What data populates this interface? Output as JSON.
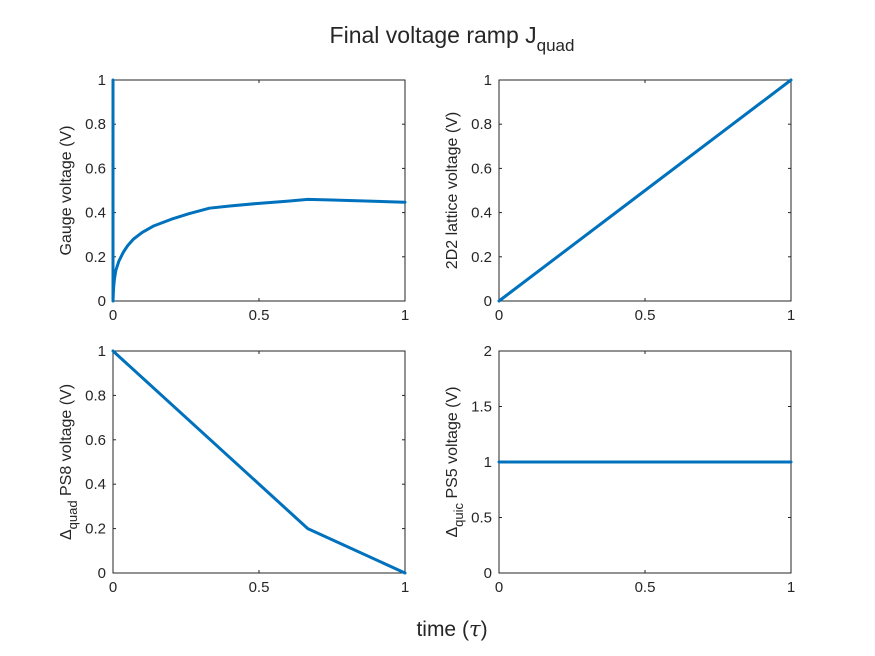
{
  "figure": {
    "title_main": "Final voltage ramp J",
    "title_sub": "quad",
    "xlabel_main": "time (",
    "xlabel_symbol": "τ",
    "xlabel_end": ")",
    "series_color": "#0072bd"
  },
  "chart_data": [
    {
      "type": "line",
      "ylabel": "Gauge voltage (V)",
      "xlim": [
        0,
        1
      ],
      "ylim": [
        0,
        1
      ],
      "xticks": [
        0,
        0.5,
        1
      ],
      "yticks": [
        0,
        0.2,
        0.4,
        0.6,
        0.8,
        1
      ],
      "xticklabels": [
        "0",
        "0.5",
        "1"
      ],
      "yticklabels": [
        "0",
        "0.2",
        "0.4",
        "0.6",
        "0.8",
        "1"
      ],
      "x": [
        0,
        0,
        0.002,
        0.005,
        0.01,
        0.02,
        0.035,
        0.05,
        0.07,
        0.1,
        0.14,
        0.2,
        0.26,
        0.33,
        0.4,
        0.5,
        0.6,
        0.667,
        0.75,
        0.85,
        1
      ],
      "y": [
        1,
        0,
        0.06,
        0.1,
        0.14,
        0.18,
        0.22,
        0.25,
        0.28,
        0.31,
        0.34,
        0.37,
        0.395,
        0.42,
        0.43,
        0.442,
        0.452,
        0.46,
        0.457,
        0.453,
        0.447
      ]
    },
    {
      "type": "line",
      "ylabel": "2D2 lattice voltage (V)",
      "xlim": [
        0,
        1
      ],
      "ylim": [
        0,
        1
      ],
      "xticks": [
        0,
        0.5,
        1
      ],
      "yticks": [
        0,
        0.2,
        0.4,
        0.6,
        0.8,
        1
      ],
      "xticklabels": [
        "0",
        "0.5",
        "1"
      ],
      "yticklabels": [
        "0",
        "0.2",
        "0.4",
        "0.6",
        "0.8",
        "1"
      ],
      "x": [
        0,
        1
      ],
      "y": [
        0,
        1
      ]
    },
    {
      "type": "line",
      "ylabel_prefix": "Δ",
      "ylabel_sub": "quad",
      "ylabel": " PS8 voltage (V)",
      "xlim": [
        0,
        1
      ],
      "ylim": [
        0,
        1
      ],
      "xticks": [
        0,
        0.5,
        1
      ],
      "yticks": [
        0,
        0.2,
        0.4,
        0.6,
        0.8,
        1
      ],
      "xticklabels": [
        "0",
        "0.5",
        "1"
      ],
      "yticklabels": [
        "0",
        "0.2",
        "0.4",
        "0.6",
        "0.8",
        "1"
      ],
      "x": [
        0,
        0.667,
        1
      ],
      "y": [
        1,
        0.2,
        0
      ]
    },
    {
      "type": "line",
      "ylabel_prefix": "Δ",
      "ylabel_sub": "quic",
      "ylabel": " PS5 voltage (V)",
      "xlim": [
        0,
        1
      ],
      "ylim": [
        0,
        2
      ],
      "xticks": [
        0,
        0.5,
        1
      ],
      "yticks": [
        0,
        0.5,
        1,
        1.5,
        2
      ],
      "xticklabels": [
        "0",
        "0.5",
        "1"
      ],
      "yticklabels": [
        "0",
        "0.5",
        "1",
        "1.5",
        "2"
      ],
      "x": [
        0,
        1
      ],
      "y": [
        1,
        1
      ]
    }
  ]
}
